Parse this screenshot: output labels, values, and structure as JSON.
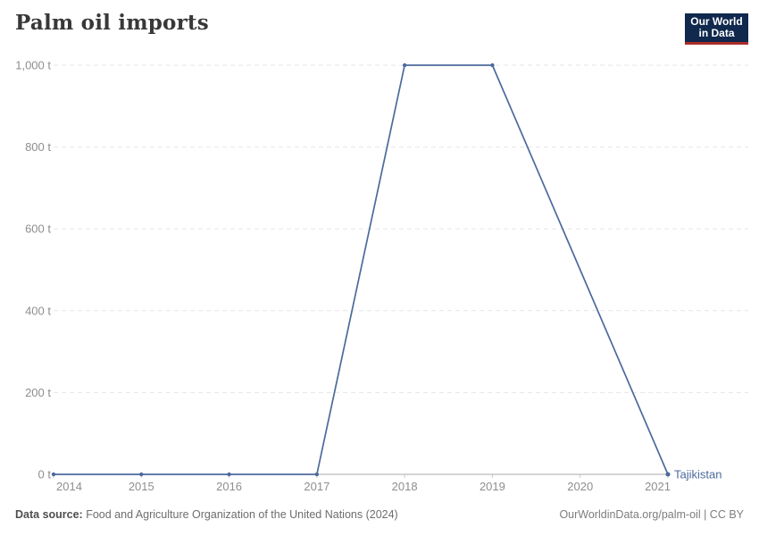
{
  "header": {
    "title": "Palm oil imports",
    "logo_line1": "Our World",
    "logo_line2": "in Data"
  },
  "footer": {
    "source_label": "Data source:",
    "source_text": " Food and Agriculture Organization of the United Nations (2024)",
    "attribution": "OurWorldinData.org/palm-oil | CC BY"
  },
  "colors": {
    "title": "#383838",
    "line": "#4c6a9c",
    "grid": "#e6e6e6",
    "axis": "#a8a8a8",
    "axis_tick": "#c8c8c8",
    "tick_label": "#8e8e8e",
    "logo_bg": "#10294d",
    "logo_red": "#aa2d28",
    "footer_label": "#4f4f4f",
    "footer_text": "#6d6d6d",
    "footer_attr": "#7d7d7d"
  },
  "chart_data": {
    "type": "line",
    "title": "Palm oil imports",
    "unit": "t",
    "x": [
      2014,
      2015,
      2016,
      2017,
      2018,
      2019,
      2021
    ],
    "series": [
      {
        "name": "Tajikistan",
        "values": [
          0,
          0,
          0,
          0,
          1000,
          1000,
          0
        ],
        "color": "#4c6a9c"
      }
    ],
    "xlim": [
      2014,
      2021
    ],
    "ylim": [
      0,
      1000
    ],
    "xticks": [
      {
        "value": 2014,
        "label": "2014"
      },
      {
        "value": 2015,
        "label": "2015"
      },
      {
        "value": 2016,
        "label": "2016"
      },
      {
        "value": 2017,
        "label": "2017"
      },
      {
        "value": 2018,
        "label": "2018"
      },
      {
        "value": 2019,
        "label": "2019"
      },
      {
        "value": 2020,
        "label": "2020"
      },
      {
        "value": 2021,
        "label": "2021"
      }
    ],
    "yticks": [
      {
        "value": 0,
        "label": "0 t"
      },
      {
        "value": 200,
        "label": "200 t"
      },
      {
        "value": 400,
        "label": "400 t"
      },
      {
        "value": 600,
        "label": "600 t"
      },
      {
        "value": 800,
        "label": "800 t"
      },
      {
        "value": 1000,
        "label": "1,000 t"
      }
    ],
    "grid": "horizontal-dashed",
    "legend_position": "end-of-line",
    "notes": "No data point for 2020; line interpolates between 2019 and 2021."
  }
}
